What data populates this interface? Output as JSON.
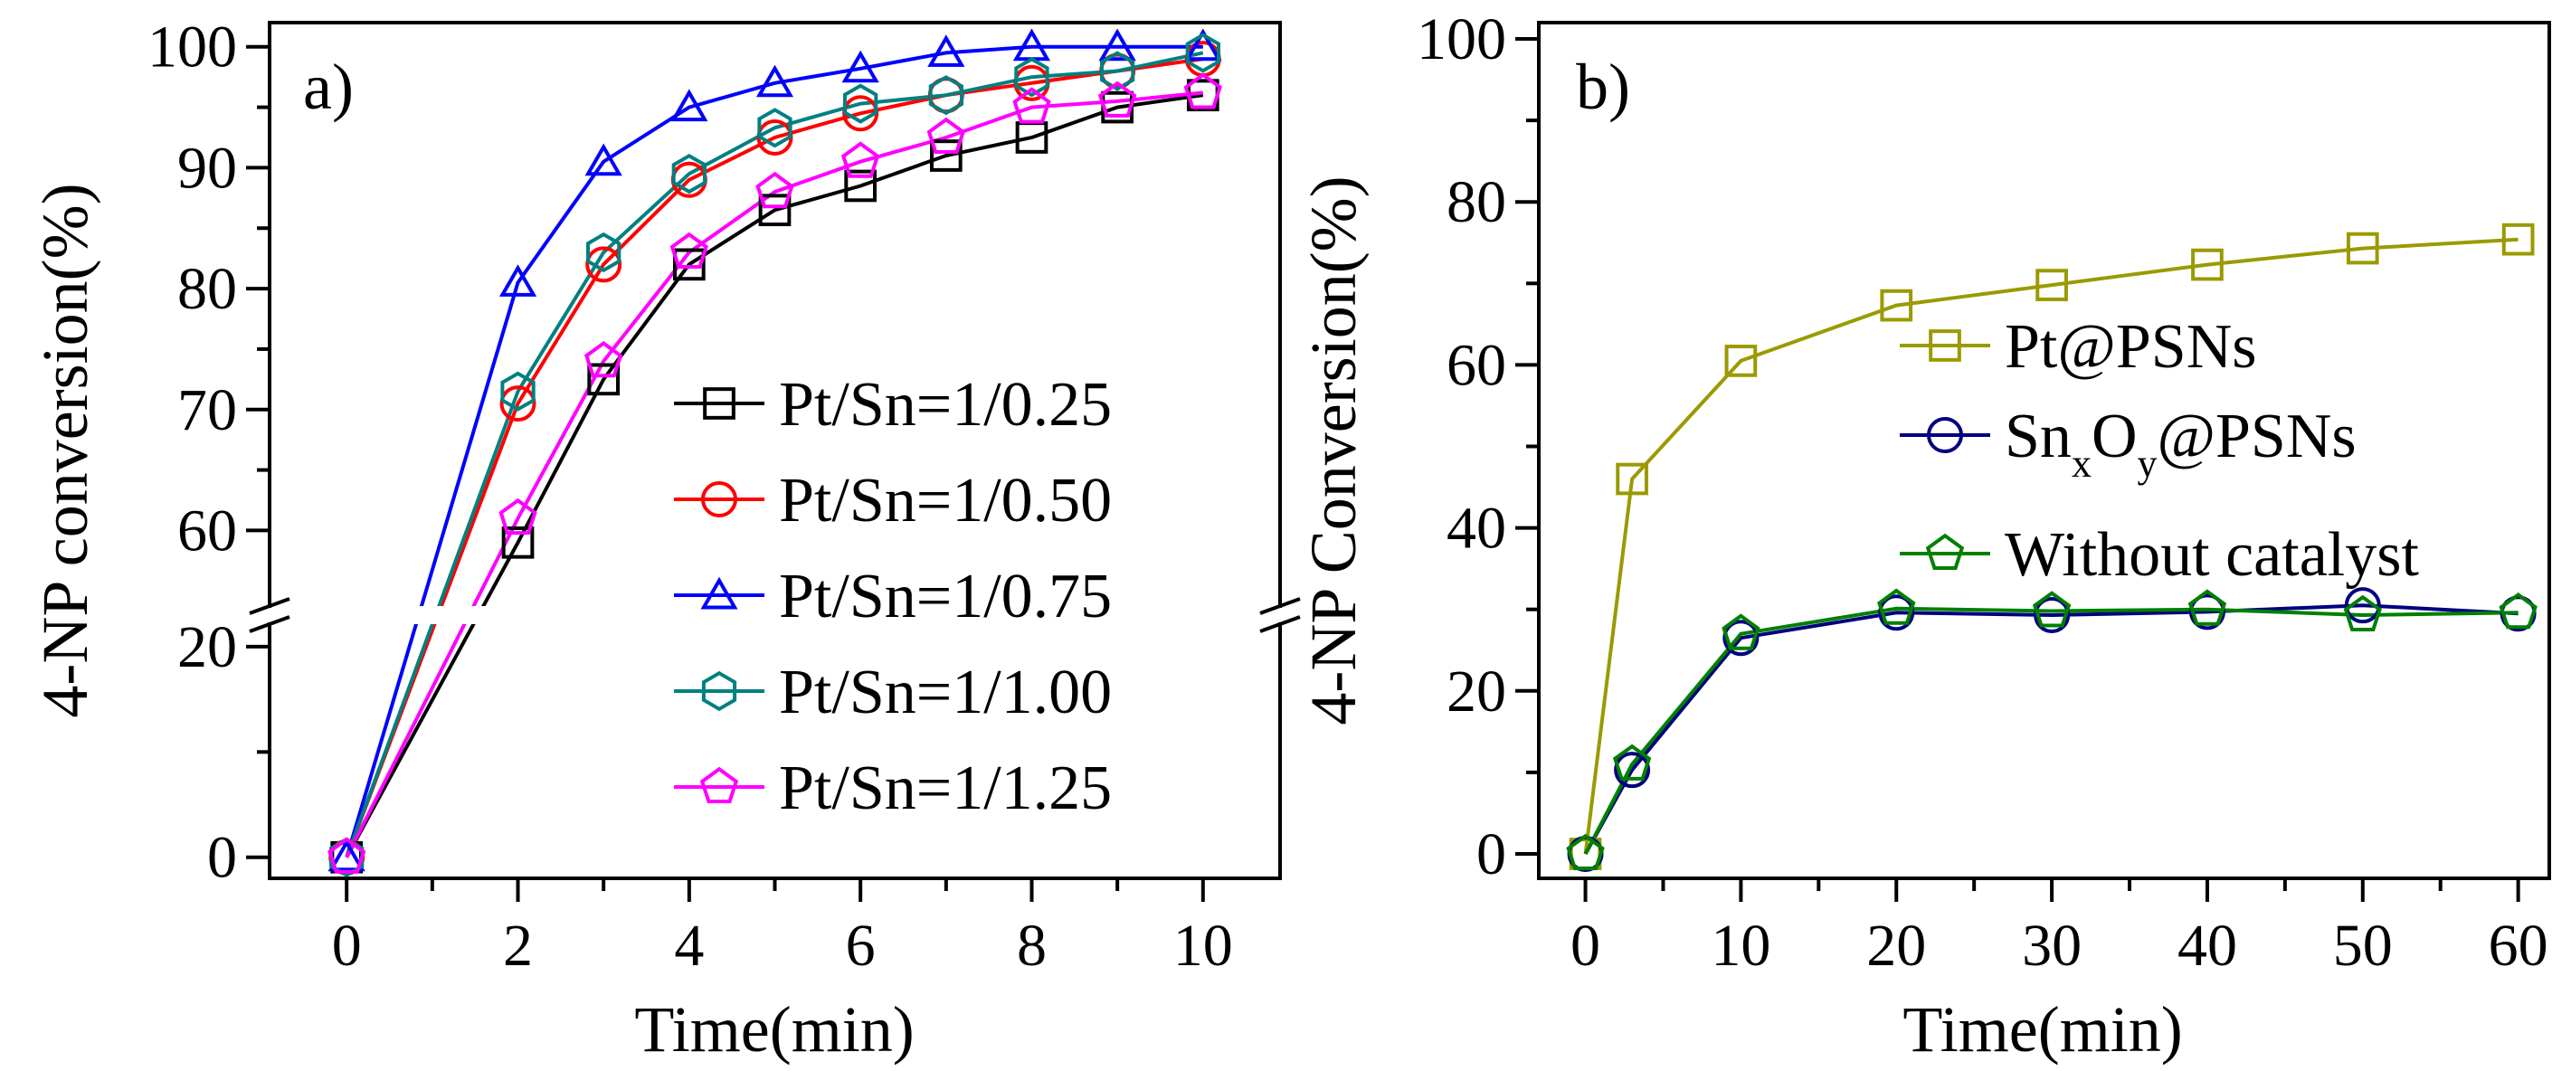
{
  "chart_data": [
    {
      "type": "line",
      "panel_label": "a)",
      "xlabel": "Time(min)",
      "ylabel": "4-NP conversion(%)",
      "xlim": [
        -0.9,
        10.9
      ],
      "xticks": [
        "0",
        "2",
        "4",
        "6",
        "8",
        "10"
      ],
      "y_axis_break": true,
      "ylim_lower": [
        -2,
        23
      ],
      "ylim_upper": [
        53,
        102
      ],
      "yticks_lower": [
        "0",
        "20"
      ],
      "yticks_upper": [
        "60",
        "70",
        "80",
        "90",
        "100"
      ],
      "legend_position": "center-right",
      "x": [
        0,
        2,
        3,
        4,
        5,
        6,
        7,
        8,
        9,
        10
      ],
      "series": [
        {
          "name": "Pt/Sn=1/0.25",
          "color": "#000000",
          "marker": "square",
          "values": [
            0,
            59,
            72.5,
            82,
            86.5,
            88.5,
            91,
            92.5,
            95,
            96
          ]
        },
        {
          "name": "Pt/Sn=1/0.50",
          "color": "#ff0000",
          "marker": "circle",
          "values": [
            0,
            70.5,
            82,
            89,
            92.5,
            94.5,
            96,
            97,
            98,
            99
          ]
        },
        {
          "name": "Pt/Sn=1/0.75",
          "color": "#0000ff",
          "marker": "triangle",
          "values": [
            0,
            80.5,
            90.5,
            95,
            97,
            98.2,
            99.5,
            100,
            100,
            100
          ]
        },
        {
          "name": "Pt/Sn=1/1.00",
          "color": "#008080",
          "marker": "hexagon",
          "values": [
            0,
            71.5,
            83,
            89.5,
            93.3,
            95.3,
            96,
            97.5,
            98,
            99.5
          ]
        },
        {
          "name": "Pt/Sn=1/1.25",
          "color": "#ff00ff",
          "marker": "pentagon",
          "values": [
            0,
            61,
            74,
            83,
            88,
            90.5,
            92.5,
            95,
            95.5,
            96.2
          ]
        }
      ]
    },
    {
      "type": "line",
      "panel_label": "b)",
      "xlabel": "Time(min)",
      "ylabel": "4-NP Conversion(%)",
      "xlim": [
        -3,
        62
      ],
      "ylim": [
        -3,
        102
      ],
      "xticks": [
        "0",
        "10",
        "20",
        "30",
        "40",
        "50",
        "60"
      ],
      "yticks": [
        "0",
        "20",
        "40",
        "60",
        "80",
        "100"
      ],
      "legend_position": "center-right",
      "x": [
        0,
        3,
        10,
        20,
        30,
        40,
        50,
        60
      ],
      "series": [
        {
          "name": "Pt@PSNs",
          "color": "#9a9a00",
          "marker": "square",
          "values": [
            0,
            46,
            60.5,
            67.3,
            69.8,
            72.3,
            74.3,
            75.4
          ]
        },
        {
          "name": "SnxOy@PSNs",
          "label_main": "Sn",
          "label_sub1": "x",
          "label_mid": "O",
          "label_sub2": "y",
          "label_tail": "@PSNs",
          "color": "#000080",
          "marker": "circle",
          "values": [
            0,
            10.3,
            26.5,
            29.6,
            29.3,
            29.7,
            30.5,
            29.5
          ]
        },
        {
          "name": "Without catalyst",
          "color": "#008000",
          "marker": "pentagon",
          "values": [
            0,
            11,
            27,
            30.1,
            29.8,
            30,
            29.3,
            29.6
          ]
        }
      ]
    }
  ]
}
